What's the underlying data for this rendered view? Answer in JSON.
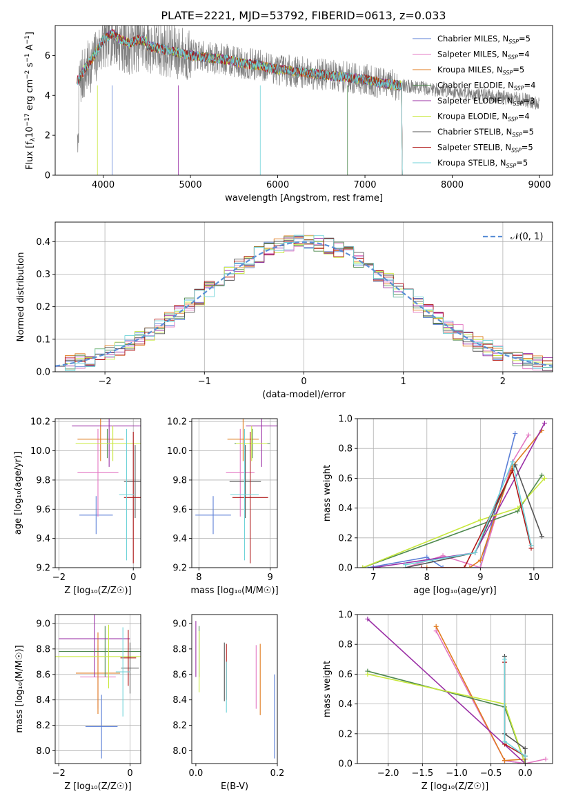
{
  "figure": {
    "title": "PLATE=2221, MJD=53792, FIBERID=0613, z=0.033"
  },
  "models": [
    {
      "label": "Chabrier MILES, N",
      "sub": "SSP",
      "n": "=5",
      "color": "#5b7fd6"
    },
    {
      "label": "Salpeter MILES, N",
      "sub": "SSP",
      "n": "=4",
      "color": "#e377c2"
    },
    {
      "label": "Kroupa MILES, N",
      "sub": "SSP",
      "n": "=5",
      "color": "#e07b1f"
    },
    {
      "label": "Chabrier ELODIE, N",
      "sub": "SSP",
      "n": "=4",
      "color": "#4f8a4f"
    },
    {
      "label": "Salpeter ELODIE, N",
      "sub": "SSP",
      "n": "=3",
      "color": "#9b30a6"
    },
    {
      "label": "Kroupa ELODIE, N",
      "sub": "SSP",
      "n": "=4",
      "color": "#c8e83c"
    },
    {
      "label": "Chabrier STELIB, N",
      "sub": "SSP",
      "n": "=5",
      "color": "#555555"
    },
    {
      "label": "Salpeter STELIB, N",
      "sub": "SSP",
      "n": "=5",
      "color": "#b01818"
    },
    {
      "label": "Kroupa STELIB, N",
      "sub": "SSP",
      "n": "=5",
      "color": "#6fd3d8"
    }
  ],
  "chart_data": [
    {
      "id": "spectrum",
      "type": "line",
      "xlabel": "wavelength [Angstrom, rest frame]",
      "ylabel": {
        "pre": "Flux [f",
        "sub1": "λ",
        "mid": "10",
        "sup1": "−17",
        "post": " erg cm",
        "sup2": "−2",
        "mid2": " s",
        "sup3": "−1",
        "post2": " A",
        "sup4": "−1",
        "end": "]"
      },
      "xlim": [
        3450,
        9150
      ],
      "ylim": [
        0,
        7.5
      ],
      "xticks": [
        4000,
        5000,
        6000,
        7000,
        8000,
        9000
      ],
      "yticks": [
        0,
        2,
        4,
        6
      ],
      "grid": false,
      "legend": "top-right",
      "data_envelope": {
        "x": [
          3700,
          3800,
          3900,
          4000,
          4100,
          4200,
          4300,
          4400,
          4600,
          4800,
          5000,
          5200,
          5400,
          5600,
          5800,
          6000,
          6200,
          6400,
          6600,
          6800,
          7000,
          7200,
          7400,
          7600,
          7800,
          8000,
          8200,
          8400,
          8600,
          8800,
          9000
        ],
        "y": [
          4.5,
          5.2,
          5.8,
          6.6,
          6.9,
          6.6,
          6.4,
          6.6,
          6.4,
          6.2,
          6.0,
          5.9,
          5.8,
          5.6,
          5.5,
          5.3,
          5.2,
          5.1,
          5.0,
          4.9,
          4.8,
          4.6,
          4.5,
          4.4,
          4.3,
          4.2,
          4.1,
          4.0,
          3.9,
          3.8,
          3.6
        ]
      },
      "model_range": [
        3700,
        7420
      ],
      "absorption_lines": [
        3934,
        4102,
        4861,
        5800,
        6800
      ]
    },
    {
      "id": "residuals",
      "type": "line",
      "xlabel": "(data-model)/error",
      "ylabel": "Normed distribution",
      "xlim": [
        -2.5,
        2.5
      ],
      "ylim": [
        0,
        0.46
      ],
      "xticks": [
        -2,
        -1,
        0,
        1,
        2
      ],
      "yticks": [
        0.0,
        0.1,
        0.2,
        0.3,
        0.4
      ],
      "grid": true,
      "legend": "top-right",
      "reference_label": "𝒩(0, 1)"
    },
    {
      "id": "age-vs-Z",
      "type": "scatter",
      "xlabel": "Z [log₁₀(Z/Z☉)]",
      "ylabel": "age  [log₁₀(age/yr)]",
      "xlim": [
        -2.1,
        0.2
      ],
      "ylim": [
        9.2,
        10.22
      ],
      "xticks": [
        -2,
        0
      ],
      "yticks": [
        9.2,
        9.4,
        9.6,
        9.8,
        10.0,
        10.2
      ],
      "grid": true,
      "points": [
        {
          "x": -1.0,
          "y": 9.56,
          "xerr": 0.45,
          "yerr": 0.13,
          "model": 0
        },
        {
          "x": -0.95,
          "y": 9.85,
          "xerr": 0.55,
          "yerr": 0.3,
          "model": 1
        },
        {
          "x": -0.88,
          "y": 10.08,
          "xerr": 0.62,
          "yerr": 0.15,
          "model": 2
        },
        {
          "x": -0.7,
          "y": 10.05,
          "xerr": 0.6,
          "yerr": 0.1,
          "model": 3
        },
        {
          "x": -0.65,
          "y": 10.17,
          "xerr": 1.0,
          "yerr": 0.28,
          "model": 4
        },
        {
          "x": -0.55,
          "y": 10.05,
          "xerr": 1.0,
          "yerr": 0.12,
          "model": 5
        },
        {
          "x": 0.05,
          "y": 9.79,
          "xerr": 0.3,
          "yerr": 0.25,
          "model": 6
        },
        {
          "x": 0.0,
          "y": 9.68,
          "xerr": 0.25,
          "yerr": 0.45,
          "model": 7
        },
        {
          "x": -0.18,
          "y": 9.7,
          "xerr": 0.2,
          "yerr": 0.45,
          "model": 8
        }
      ]
    },
    {
      "id": "age-vs-mass",
      "type": "scatter",
      "xlabel": "mass [log₁₀(M/M☉)]",
      "ylabel": "",
      "xlim": [
        7.9,
        9.1
      ],
      "ylim": [
        9.2,
        10.22
      ],
      "xticks": [
        8,
        9
      ],
      "yticks": [
        9.2,
        9.4,
        9.6,
        9.8,
        10.0,
        10.2
      ],
      "grid": true,
      "points": [
        {
          "x": 8.2,
          "y": 9.56,
          "xerr": 0.25,
          "yerr": 0.13,
          "model": 0
        },
        {
          "x": 8.58,
          "y": 9.85,
          "xerr": 0.2,
          "yerr": 0.3,
          "model": 1
        },
        {
          "x": 8.62,
          "y": 10.08,
          "xerr": 0.22,
          "yerr": 0.15,
          "model": 2
        },
        {
          "x": 8.75,
          "y": 10.05,
          "xerr": 0.25,
          "yerr": 0.1,
          "model": 3
        },
        {
          "x": 8.88,
          "y": 10.17,
          "xerr": 0.22,
          "yerr": 0.28,
          "model": 4
        },
        {
          "x": 8.74,
          "y": 10.05,
          "xerr": 0.22,
          "yerr": 0.12,
          "model": 5
        },
        {
          "x": 8.65,
          "y": 9.79,
          "xerr": 0.22,
          "yerr": 0.25,
          "model": 6
        },
        {
          "x": 8.72,
          "y": 9.68,
          "xerr": 0.25,
          "yerr": 0.45,
          "model": 7
        },
        {
          "x": 8.64,
          "y": 9.7,
          "xerr": 0.2,
          "yerr": 0.45,
          "model": 8
        }
      ]
    },
    {
      "id": "weight-vs-age",
      "type": "line",
      "xlabel": "age  [log₁₀(age/yr)]",
      "ylabel": "mass weight",
      "xlim": [
        6.7,
        10.35
      ],
      "ylim": [
        0,
        1.0
      ],
      "xticks": [
        7,
        8,
        9,
        10
      ],
      "yticks": [
        0.0,
        0.2,
        0.4,
        0.6,
        0.8,
        1.0
      ],
      "grid": true,
      "series": [
        {
          "model": 0,
          "x": [
            6.9,
            8.0,
            8.3,
            9.0,
            9.65
          ],
          "y": [
            0.0,
            0.07,
            0.0,
            0.0,
            0.9
          ]
        },
        {
          "model": 1,
          "x": [
            7.6,
            8.3,
            9.0,
            9.6,
            9.9
          ],
          "y": [
            0.0,
            0.08,
            0.0,
            0.71,
            0.89
          ]
        },
        {
          "model": 2,
          "x": [
            8.0,
            8.8,
            9.0,
            9.6,
            10.15
          ],
          "y": [
            0.0,
            0.0,
            0.05,
            0.68,
            0.92
          ]
        },
        {
          "model": 3,
          "x": [
            6.8,
            9.7,
            10.15
          ],
          "y": [
            0.0,
            0.38,
            0.62
          ]
        },
        {
          "model": 4,
          "x": [
            7.0,
            8.9,
            10.2
          ],
          "y": [
            0.0,
            0.1,
            0.97
          ]
        },
        {
          "model": 5,
          "x": [
            6.8,
            9.0,
            9.7,
            10.2
          ],
          "y": [
            0.0,
            0.32,
            0.4,
            0.6
          ]
        },
        {
          "model": 6,
          "x": [
            7.6,
            8.9,
            9.65,
            10.15
          ],
          "y": [
            0.0,
            0.1,
            0.69,
            0.21
          ]
        },
        {
          "model": 7,
          "x": [
            7.9,
            8.7,
            9.6,
            9.95
          ],
          "y": [
            0.0,
            0.0,
            0.65,
            0.13
          ]
        },
        {
          "model": 8,
          "x": [
            7.6,
            8.9,
            9.6,
            9.95
          ],
          "y": [
            0.02,
            0.1,
            0.71,
            0.15
          ]
        }
      ]
    },
    {
      "id": "mass-vs-Z",
      "type": "scatter",
      "xlabel": "Z [log₁₀(Z/Z☉)]",
      "ylabel": "mass [log₁₀(M/M☉)]",
      "xlim": [
        -2.1,
        0.3
      ],
      "ylim": [
        7.9,
        9.07
      ],
      "xticks": [
        -2,
        0
      ],
      "yticks": [
        8.0,
        8.2,
        8.4,
        8.6,
        8.8,
        9.0
      ],
      "grid": true,
      "points": [
        {
          "x": -0.8,
          "y": 8.19,
          "xerr": 0.45,
          "yerr": 0.25,
          "model": 0
        },
        {
          "x": -0.9,
          "y": 8.58,
          "xerr": 0.5,
          "yerr": 0.25,
          "model": 1
        },
        {
          "x": -0.9,
          "y": 8.61,
          "xerr": 0.62,
          "yerr": 0.32,
          "model": 2
        },
        {
          "x": -0.7,
          "y": 8.78,
          "xerr": 1.3,
          "yerr": 0.2,
          "model": 3
        },
        {
          "x": -1.0,
          "y": 8.88,
          "xerr": 1.0,
          "yerr": 0.3,
          "model": 4
        },
        {
          "x": -0.6,
          "y": 8.74,
          "xerr": 1.5,
          "yerr": 0.25,
          "model": 5
        },
        {
          "x": 0.0,
          "y": 8.65,
          "xerr": 0.25,
          "yerr": 0.2,
          "model": 6
        },
        {
          "x": -0.05,
          "y": 8.73,
          "xerr": 0.22,
          "yerr": 0.22,
          "model": 7
        },
        {
          "x": -0.2,
          "y": 8.62,
          "xerr": 0.2,
          "yerr": 0.35,
          "model": 8
        }
      ]
    },
    {
      "id": "mass-vs-EBV",
      "type": "scatter",
      "xlabel": "E(B-V)",
      "ylabel": "",
      "xlim": [
        -0.01,
        0.2
      ],
      "ylim": [
        7.9,
        9.07
      ],
      "xticks": [
        0.0,
        0.2
      ],
      "yticks": [
        8.0,
        8.2,
        8.4,
        8.6,
        8.8,
        9.0
      ],
      "grid": false,
      "points": [
        {
          "x": 0.193,
          "y": 8.27,
          "yerr": 0.33,
          "model": 0
        },
        {
          "x": 0.148,
          "y": 8.58,
          "yerr": 0.25,
          "model": 1
        },
        {
          "x": 0.158,
          "y": 8.56,
          "yerr": 0.28,
          "model": 2
        },
        {
          "x": 0.008,
          "y": 8.78,
          "yerr": 0.2,
          "model": 3
        },
        {
          "x": 0.0,
          "y": 8.8,
          "yerr": 0.22,
          "model": 4
        },
        {
          "x": 0.008,
          "y": 8.7,
          "yerr": 0.24,
          "model": 5
        },
        {
          "x": 0.07,
          "y": 8.62,
          "yerr": 0.23,
          "model": 6
        },
        {
          "x": 0.075,
          "y": 8.62,
          "yerr": 0.22,
          "model": 7
        },
        {
          "x": 0.075,
          "y": 8.5,
          "yerr": 0.2,
          "model": 8
        }
      ]
    },
    {
      "id": "weight-vs-Z",
      "type": "line",
      "xlabel": "Z [log₁₀(Z/Z☉)]",
      "ylabel": "mass weight",
      "xlim": [
        -2.45,
        0.4
      ],
      "ylim": [
        0,
        1.0
      ],
      "xticks": [
        -2.0,
        -1.5,
        -1.0,
        -0.5,
        0.0
      ],
      "yticks": [
        0.0,
        0.2,
        0.4,
        0.6,
        0.8,
        1.0
      ],
      "grid": true,
      "series": [
        {
          "model": 0,
          "x": [
            -0.3,
            0.0
          ],
          "y": [
            0.02,
            0.0
          ]
        },
        {
          "model": 1,
          "x": [
            -1.3,
            -0.3,
            0.0,
            0.3
          ],
          "y": [
            0.89,
            0.02,
            0.0,
            0.03
          ]
        },
        {
          "model": 2,
          "x": [
            -1.3,
            -0.3,
            0.0
          ],
          "y": [
            0.92,
            0.02,
            0.03
          ]
        },
        {
          "model": 3,
          "x": [
            -2.3,
            -0.3,
            0.0
          ],
          "y": [
            0.62,
            0.38,
            0.0
          ]
        },
        {
          "model": 4,
          "x": [
            -2.3,
            0.0
          ],
          "y": [
            0.97,
            0.0
          ]
        },
        {
          "model": 5,
          "x": [
            -2.3,
            -0.3,
            0.0
          ],
          "y": [
            0.6,
            0.4,
            0.0
          ]
        },
        {
          "model": 6,
          "x": [
            -0.3,
            -0.3,
            0.0,
            0.0
          ],
          "y": [
            0.72,
            0.2,
            0.1,
            0.0
          ]
        },
        {
          "model": 7,
          "x": [
            -0.3,
            -0.3,
            0.0
          ],
          "y": [
            0.68,
            0.13,
            0.05
          ]
        },
        {
          "model": 8,
          "x": [
            -0.3,
            -0.3,
            0.0
          ],
          "y": [
            0.7,
            0.15,
            0.05
          ]
        }
      ]
    }
  ]
}
